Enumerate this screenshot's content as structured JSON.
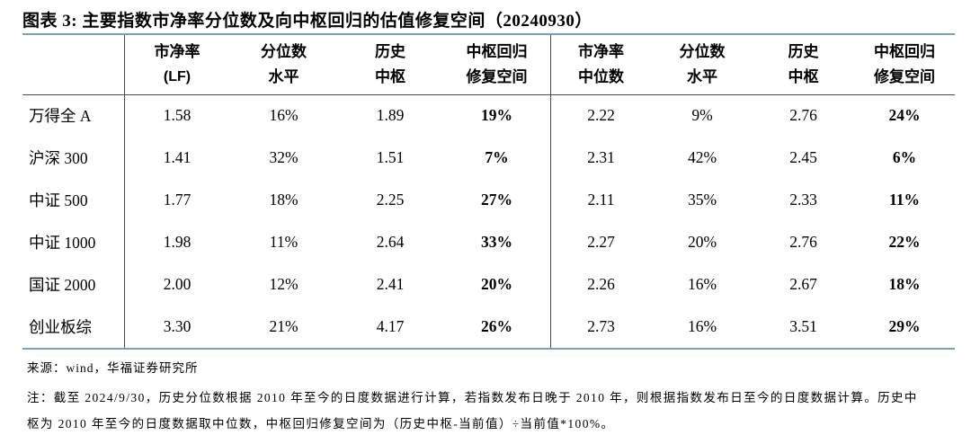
{
  "figure": {
    "title": "图表 3: 主要指数市净率分位数及向中枢回归的估值修复空间（20240930）"
  },
  "table": {
    "headers": [
      [
        "市净率",
        "(LF)"
      ],
      [
        "分位数",
        "水平"
      ],
      [
        "历史",
        "中枢"
      ],
      [
        "中枢回归",
        "修复空间"
      ],
      [
        "市净率",
        "中位数"
      ],
      [
        "分位数",
        "水平"
      ],
      [
        "历史",
        "中枢"
      ],
      [
        "中枢回归",
        "修复空间"
      ]
    ],
    "rows": [
      {
        "label": "万得全 A",
        "cells": [
          "1.58",
          "16%",
          "1.89",
          "19%",
          "2.22",
          "9%",
          "2.76",
          "24%"
        ]
      },
      {
        "label": "沪深 300",
        "cells": [
          "1.41",
          "32%",
          "1.51",
          "7%",
          "2.31",
          "42%",
          "2.45",
          "6%"
        ]
      },
      {
        "label": "中证 500",
        "cells": [
          "1.77",
          "18%",
          "2.25",
          "27%",
          "2.11",
          "35%",
          "2.33",
          "11%"
        ]
      },
      {
        "label": "中证 1000",
        "cells": [
          "1.98",
          "11%",
          "2.64",
          "33%",
          "2.27",
          "20%",
          "2.76",
          "22%"
        ]
      },
      {
        "label": "国证 2000",
        "cells": [
          "2.00",
          "12%",
          "2.41",
          "20%",
          "2.26",
          "16%",
          "2.67",
          "18%"
        ]
      },
      {
        "label": "创业板综",
        "cells": [
          "3.30",
          "21%",
          "4.17",
          "26%",
          "2.73",
          "16%",
          "3.51",
          "29%"
        ]
      }
    ]
  },
  "footer": {
    "source": "来源：wind，华福证券研究所",
    "note_line1": "注：截至 2024/9/30，历史分位数根据 2010 年至今的日度数据进行计算，若指数发布日晚于 2010 年，则根据指数发布日至今的日度数据计算。历史中",
    "note_line2": "枢为 2010 年至今的日度数据取中位数，中枢回归修复空间为（历史中枢-当前值）÷当前值*100%。"
  },
  "colors": {
    "rule_blue": "#7f9dc4",
    "divider": "#4a4a4a",
    "text": "#000000"
  }
}
